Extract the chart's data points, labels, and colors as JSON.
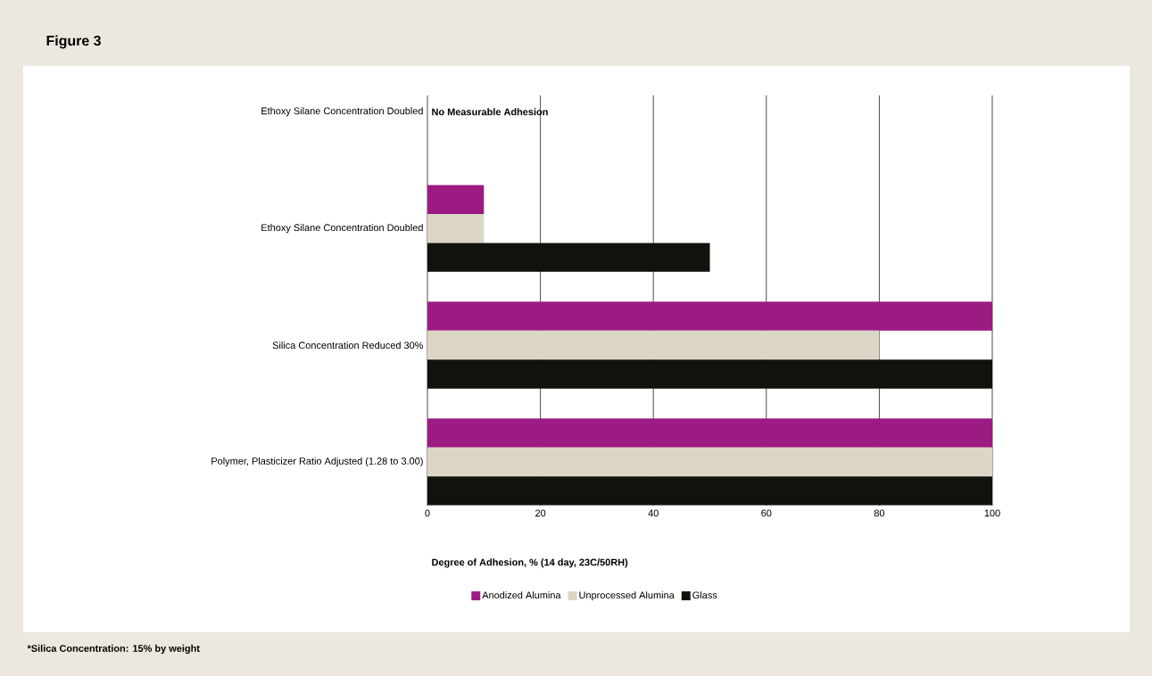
{
  "chart_data": {
    "type": "bar",
    "orientation": "horizontal",
    "title": "Figure 3",
    "xlabel": "Degree of Adhesion, % (14 day, 23C/50RH)",
    "categories": [
      "Ethoxy Silane Concentration Doubled",
      "Ethoxy Silane Concentration Doubled",
      "Silica Concentration Reduced 30%",
      "Polymer, Plasticizer Ratio Adjusted (1.28 to 3.00)"
    ],
    "series": [
      {
        "name": "Anodized Alumina",
        "color": "#9b1b83",
        "values": [
          null,
          10,
          100,
          100
        ]
      },
      {
        "name": "Unprocessed Alumina",
        "color": "#dcd6c6",
        "values": [
          null,
          10,
          80,
          100
        ]
      },
      {
        "name": "Glass",
        "color": "#12120c",
        "values": [
          null,
          50,
          100,
          100
        ]
      }
    ],
    "xlim": [
      0,
      100
    ],
    "xticks": [
      0,
      20,
      40,
      60,
      80,
      100
    ],
    "grid": "x",
    "legend": "bottom",
    "annotations": [
      "No Measurable Adhesion",
      "*Silica Concentration: 15% by weight"
    ]
  }
}
